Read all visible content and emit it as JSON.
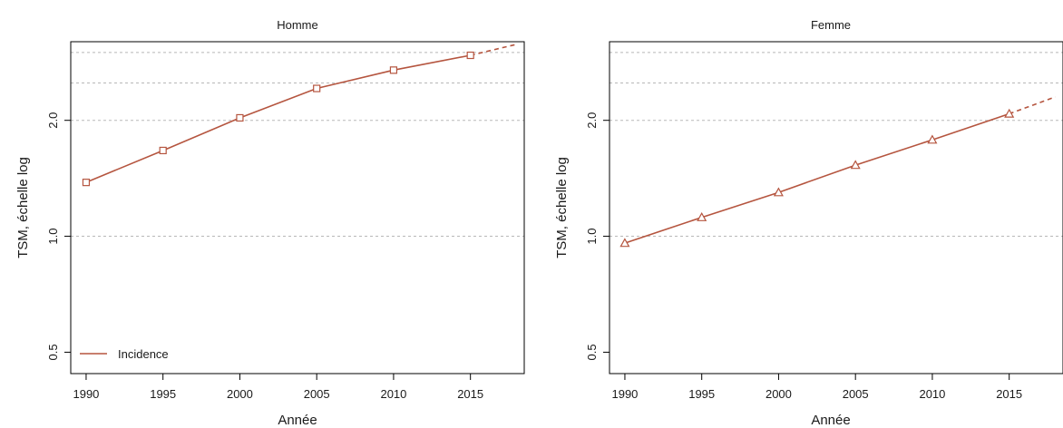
{
  "chart_data": [
    {
      "type": "line",
      "title": "Homme",
      "xlabel": "Année",
      "ylabel": "TSM, échelle log",
      "y_scale": "log",
      "xlim": [
        1989,
        2018.5
      ],
      "ylim": [
        0.44,
        3.2
      ],
      "x_ticks": [
        1990,
        1995,
        2000,
        2005,
        2010,
        2015
      ],
      "x_tick_labels": [
        "1990",
        "1995",
        "2000",
        "2005",
        "2010",
        "2015"
      ],
      "y_ticks": [
        0.5,
        1.0,
        2.0
      ],
      "y_tick_labels": [
        "0.5",
        "1.0",
        "2.0"
      ],
      "y_gridlines": [
        1.0,
        2.0,
        2.5,
        3.0
      ],
      "grid": true,
      "legend": {
        "position": "bottom-left",
        "entries": [
          "Incidence"
        ]
      },
      "series": [
        {
          "name": "Incidence",
          "color": "#b5553f",
          "marker": "square",
          "x": [
            1990,
            1995,
            2000,
            2005,
            2010,
            2015
          ],
          "y": [
            1.38,
            1.67,
            2.03,
            2.42,
            2.7,
            2.95
          ]
        }
      ],
      "projection": {
        "line_style": "dashed",
        "x": [
          2015,
          2018
        ],
        "y": [
          2.95,
          3.15
        ]
      }
    },
    {
      "type": "line",
      "title": "Femme",
      "xlabel": "Année",
      "ylabel": "TSM, échelle log",
      "y_scale": "log",
      "xlim": [
        1989,
        2018.5
      ],
      "ylim": [
        0.44,
        3.2
      ],
      "x_ticks": [
        1990,
        1995,
        2000,
        2005,
        2010,
        2015
      ],
      "x_tick_labels": [
        "1990",
        "1995",
        "2000",
        "2005",
        "2010",
        "2015"
      ],
      "y_ticks": [
        0.5,
        1.0,
        2.0
      ],
      "y_tick_labels": [
        "0.5",
        "1.0",
        "2.0"
      ],
      "y_gridlines": [
        1.0,
        2.0,
        2.5,
        3.0
      ],
      "grid": true,
      "series": [
        {
          "name": "Incidence",
          "color": "#b5553f",
          "marker": "triangle",
          "x": [
            1990,
            1995,
            2000,
            2005,
            2010,
            2015
          ],
          "y": [
            0.96,
            1.12,
            1.3,
            1.53,
            1.78,
            2.08
          ]
        }
      ],
      "projection": {
        "line_style": "dashed",
        "x": [
          2015,
          2018
        ],
        "y": [
          2.08,
          2.3
        ]
      }
    }
  ]
}
